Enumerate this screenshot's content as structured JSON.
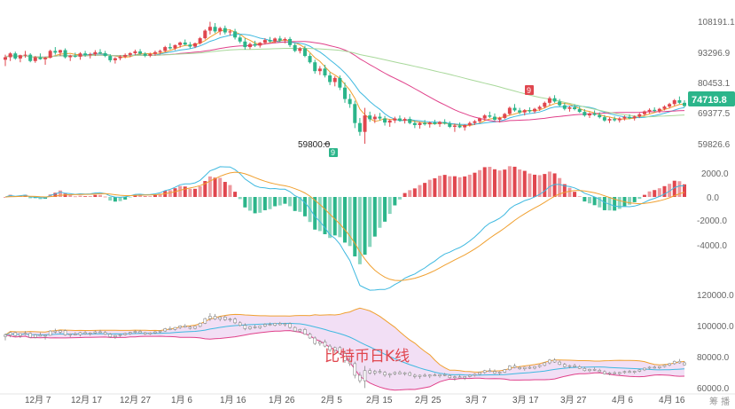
{
  "chart_data": {
    "type": "candlestick",
    "title": "",
    "x_labels": [
      "12月 7",
      "12月 17",
      "12月 27",
      "1月 6",
      "1月 16",
      "1月 26",
      "2月 5",
      "2月 15",
      "2月 25",
      "3月 7",
      "3月 17",
      "3月 27",
      "4月 6",
      "4月 16"
    ],
    "price_ticks": [
      "108191.1",
      "93296.9",
      "80453.1",
      "69377.5",
      "59826.6"
    ],
    "last_price": "74719.8",
    "low_annotation": "59800.0",
    "flag_marker": "9",
    "macd_ticks": [
      "2000.0",
      "0.0",
      "-2000.0",
      "-4000.0"
    ],
    "volume_ticks": [
      "120000.0",
      "100000.0",
      "80000.0",
      "60000.0"
    ],
    "watermark": "比特币日K线",
    "footer_text": "筹 播",
    "candles_ohlc": [
      [
        93000,
        95000,
        90500,
        94000
      ],
      [
        94000,
        96000,
        92500,
        95500
      ],
      [
        95500,
        96200,
        93000,
        93500
      ],
      [
        93500,
        95000,
        92000,
        94800
      ],
      [
        94800,
        96500,
        93800,
        95000
      ],
      [
        95000,
        95600,
        92000,
        92500
      ],
      [
        92500,
        94500,
        91800,
        94000
      ],
      [
        94000,
        95500,
        93000,
        93200
      ],
      [
        93200,
        94200,
        91000,
        93800
      ],
      [
        93800,
        97000,
        93500,
        96500
      ],
      [
        96500,
        98000,
        95000,
        95800
      ],
      [
        95800,
        97000,
        94500,
        96800
      ],
      [
        96800,
        97500,
        93500,
        94000
      ],
      [
        94000,
        95000,
        92500,
        94600
      ],
      [
        94600,
        95800,
        93800,
        94200
      ],
      [
        94200,
        96000,
        93000,
        95500
      ],
      [
        95500,
        96500,
        94200,
        94800
      ],
      [
        94800,
        95800,
        93500,
        95200
      ],
      [
        95200,
        96800,
        94500,
        96000
      ],
      [
        96000,
        97200,
        95200,
        95600
      ],
      [
        95600,
        96500,
        94000,
        94500
      ],
      [
        94500,
        95200,
        92000,
        92800
      ],
      [
        92800,
        94000,
        91500,
        93600
      ],
      [
        93600,
        94800,
        92800,
        94200
      ],
      [
        94200,
        95500,
        93600,
        94900
      ],
      [
        94900,
        96000,
        94000,
        95600
      ],
      [
        95600,
        97000,
        94800,
        96300
      ],
      [
        96300,
        97200,
        95000,
        95400
      ],
      [
        95400,
        96000,
        94000,
        94600
      ],
      [
        94600,
        95800,
        94000,
        95300
      ],
      [
        95300,
        96600,
        94600,
        96000
      ],
      [
        96000,
        97000,
        95200,
        96500
      ],
      [
        96500,
        98500,
        96000,
        98000
      ],
      [
        98000,
        99500,
        97000,
        97500
      ],
      [
        97500,
        99000,
        96800,
        98800
      ],
      [
        98800,
        100200,
        97800,
        99800
      ],
      [
        99800,
        101000,
        98600,
        99000
      ],
      [
        99000,
        100000,
        97500,
        98200
      ],
      [
        98200,
        99800,
        97600,
        99500
      ],
      [
        99500,
        102000,
        99000,
        101500
      ],
      [
        101500,
        105000,
        101000,
        104500
      ],
      [
        104500,
        108000,
        103000,
        106000
      ],
      [
        106000,
        107500,
        103500,
        104200
      ],
      [
        104200,
        106000,
        102800,
        105500
      ],
      [
        105500,
        106500,
        103000,
        103800
      ],
      [
        103800,
        105000,
        102500,
        104200
      ],
      [
        104200,
        105200,
        101000,
        101800
      ],
      [
        101800,
        102800,
        99500,
        100200
      ],
      [
        100200,
        101500,
        97000,
        98000
      ],
      [
        98000,
        99800,
        97200,
        99200
      ],
      [
        99200,
        100500,
        98000,
        98600
      ],
      [
        98600,
        100000,
        97800,
        99700
      ],
      [
        99700,
        101500,
        99000,
        100800
      ],
      [
        100800,
        102000,
        99800,
        100200
      ],
      [
        100200,
        101800,
        99500,
        101400
      ],
      [
        101400,
        102400,
        100000,
        100600
      ],
      [
        100600,
        101800,
        99500,
        101200
      ],
      [
        101200,
        102000,
        98000,
        98800
      ],
      [
        98800,
        99500,
        96000,
        96500
      ],
      [
        96500,
        98000,
        95500,
        97500
      ],
      [
        97500,
        98500,
        94000,
        94500
      ],
      [
        94500,
        95500,
        91500,
        92000
      ],
      [
        92000,
        93000,
        87500,
        88500
      ],
      [
        88500,
        90500,
        87000,
        89500
      ],
      [
        89500,
        91000,
        86000,
        86800
      ],
      [
        86800,
        88000,
        83000,
        84200
      ],
      [
        84200,
        86500,
        82500,
        85800
      ],
      [
        85800,
        86800,
        81000,
        82000
      ],
      [
        82000,
        84000,
        76000,
        77500
      ],
      [
        77500,
        79500,
        74000,
        75500
      ],
      [
        75500,
        76800,
        66000,
        68000
      ],
      [
        68000,
        70000,
        63000,
        64500
      ],
      [
        64500,
        74000,
        59800,
        71000
      ],
      [
        71000,
        72500,
        68500,
        69500
      ],
      [
        69500,
        71500,
        68000,
        70500
      ],
      [
        70500,
        72000,
        69000,
        69800
      ],
      [
        69800,
        70800,
        67000,
        68200
      ],
      [
        68200,
        69500,
        66500,
        69000
      ],
      [
        69000,
        70500,
        68000,
        69800
      ],
      [
        69800,
        71000,
        68500,
        68900
      ],
      [
        68900,
        70200,
        67800,
        69600
      ],
      [
        69600,
        70500,
        67500,
        68000
      ],
      [
        68000,
        69000,
        66000,
        67200
      ],
      [
        67200,
        68500,
        65800,
        68000
      ],
      [
        68000,
        69200,
        67000,
        67500
      ],
      [
        67500,
        68600,
        66200,
        68200
      ],
      [
        68200,
        69300,
        67300,
        67600
      ],
      [
        67600,
        68800,
        66500,
        68400
      ],
      [
        68400,
        69500,
        67400,
        67800
      ],
      [
        67800,
        68700,
        66000,
        66500
      ],
      [
        66500,
        67800,
        64500,
        67000
      ],
      [
        67000,
        68200,
        66000,
        66300
      ],
      [
        66300,
        67500,
        65000,
        67200
      ],
      [
        67200,
        68600,
        66600,
        68000
      ],
      [
        68000,
        69200,
        67200,
        68700
      ],
      [
        68700,
        70200,
        68000,
        69800
      ],
      [
        69800,
        71500,
        69000,
        71000
      ],
      [
        71000,
        72500,
        70000,
        70500
      ],
      [
        70500,
        71800,
        68800,
        69300
      ],
      [
        69300,
        70500,
        68200,
        70000
      ],
      [
        70000,
        72000,
        69500,
        71600
      ],
      [
        71600,
        74500,
        71000,
        74000
      ],
      [
        74000,
        75500,
        72500,
        73000
      ],
      [
        73000,
        74000,
        71500,
        72200
      ],
      [
        72200,
        73500,
        71000,
        73100
      ],
      [
        73100,
        74200,
        72000,
        72600
      ],
      [
        72600,
        74000,
        71800,
        73600
      ],
      [
        73600,
        75000,
        72800,
        74400
      ],
      [
        74400,
        76500,
        73800,
        76000
      ],
      [
        76000,
        78500,
        75000,
        77800
      ],
      [
        77800,
        79000,
        76000,
        76500
      ],
      [
        76500,
        77500,
        74500,
        75000
      ],
      [
        75000,
        76000,
        73000,
        73600
      ],
      [
        73600,
        74800,
        72500,
        74200
      ],
      [
        74200,
        75400,
        73000,
        73500
      ],
      [
        73500,
        74500,
        72000,
        72400
      ],
      [
        72400,
        73500,
        70500,
        71000
      ],
      [
        71000,
        72300,
        70000,
        71800
      ],
      [
        71800,
        73000,
        70800,
        71200
      ],
      [
        71200,
        72200,
        69800,
        70300
      ],
      [
        70300,
        71200,
        68500,
        69000
      ],
      [
        69000,
        70200,
        68000,
        69600
      ],
      [
        69600,
        70600,
        68600,
        69100
      ],
      [
        69100,
        70300,
        68200,
        69800
      ],
      [
        69800,
        71000,
        69000,
        70400
      ],
      [
        70400,
        71400,
        69500,
        69900
      ],
      [
        69900,
        71000,
        69000,
        70600
      ],
      [
        70600,
        72000,
        70000,
        71500
      ],
      [
        71500,
        73000,
        70800,
        72600
      ],
      [
        72600,
        73800,
        71800,
        73200
      ],
      [
        73200,
        74200,
        72300,
        72800
      ],
      [
        72800,
        74000,
        72000,
        73600
      ],
      [
        73600,
        75000,
        73000,
        74500
      ],
      [
        74500,
        76000,
        73800,
        75500
      ],
      [
        75500,
        77500,
        74800,
        77000
      ],
      [
        77000,
        78500,
        75500,
        76000
      ],
      [
        76000,
        77000,
        74200,
        74720
      ]
    ]
  }
}
